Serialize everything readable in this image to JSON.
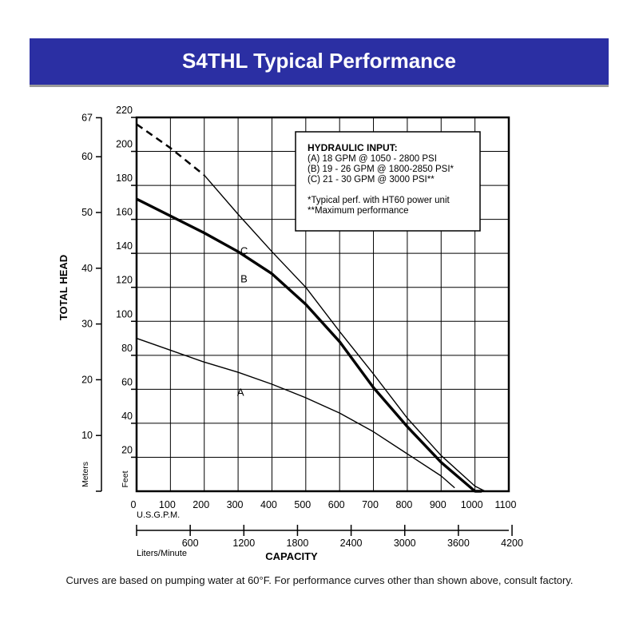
{
  "header": {
    "title": "S4THL Typical Performance"
  },
  "colors": {
    "banner": "#2b2fa3",
    "banner_text": "#ffffff",
    "grid": "#000000"
  },
  "chart_data": {
    "type": "line",
    "title": "S4THL Typical Performance",
    "ylabel": "TOTAL HEAD",
    "xlabel": "CAPACITY",
    "x_unit_primary": "U.S.G.P.M.",
    "x_unit_secondary": "Liters/Minute",
    "y_unit_primary": "Feet",
    "y_unit_secondary": "Meters",
    "xlim": [
      0,
      1100
    ],
    "ylim": [
      0,
      220
    ],
    "grid": true,
    "x_ticks": [
      "0",
      "100",
      "200",
      "300",
      "400",
      "500",
      "600",
      "700",
      "800",
      "900",
      "1000",
      "1100"
    ],
    "y_ticks": [
      "20",
      "40",
      "60",
      "80",
      "100",
      "120",
      "140",
      "160",
      "180",
      "200",
      "220"
    ],
    "liters_ticks": [
      "600",
      "1200",
      "1800",
      "2400",
      "3000",
      "3600",
      "4200"
    ],
    "meters_ticks": [
      "10",
      "20",
      "30",
      "40",
      "50",
      "60",
      "67"
    ],
    "series": [
      {
        "name": "C",
        "dashed_until": 200,
        "x": [
          0,
          100,
          200,
          300,
          400,
          500,
          600,
          700,
          800,
          900,
          1000,
          1030
        ],
        "y": [
          216,
          202,
          186,
          163,
          141,
          120,
          94,
          69,
          43,
          21,
          3,
          0
        ]
      },
      {
        "name": "B",
        "x": [
          0,
          100,
          200,
          300,
          400,
          500,
          600,
          700,
          800,
          900,
          1000,
          1020
        ],
        "y": [
          172,
          162,
          152,
          141,
          128,
          110,
          88,
          61,
          38,
          17,
          0,
          0
        ]
      },
      {
        "name": "A",
        "x": [
          0,
          100,
          200,
          300,
          400,
          500,
          600,
          700,
          800,
          900,
          940
        ],
        "y": [
          90,
          83,
          76,
          70,
          63,
          55,
          46,
          35,
          22,
          9,
          2
        ]
      }
    ],
    "legend": {
      "title": "HYDRAULIC INPUT:",
      "lines": [
        "(A) 18 GPM @ 1050 - 2800 PSI",
        "(B) 19 - 26 GPM @ 1800-2850 PSI*",
        "(C) 21 - 30 GPM @ 3000 PSI**"
      ],
      "notes": [
        "*Typical perf. with HT60 power unit",
        "**Maximum performance"
      ],
      "placement": "top-right"
    }
  },
  "footnote": "Curves are based on pumping water at 60°F. For performance curves other than shown above, consult factory."
}
